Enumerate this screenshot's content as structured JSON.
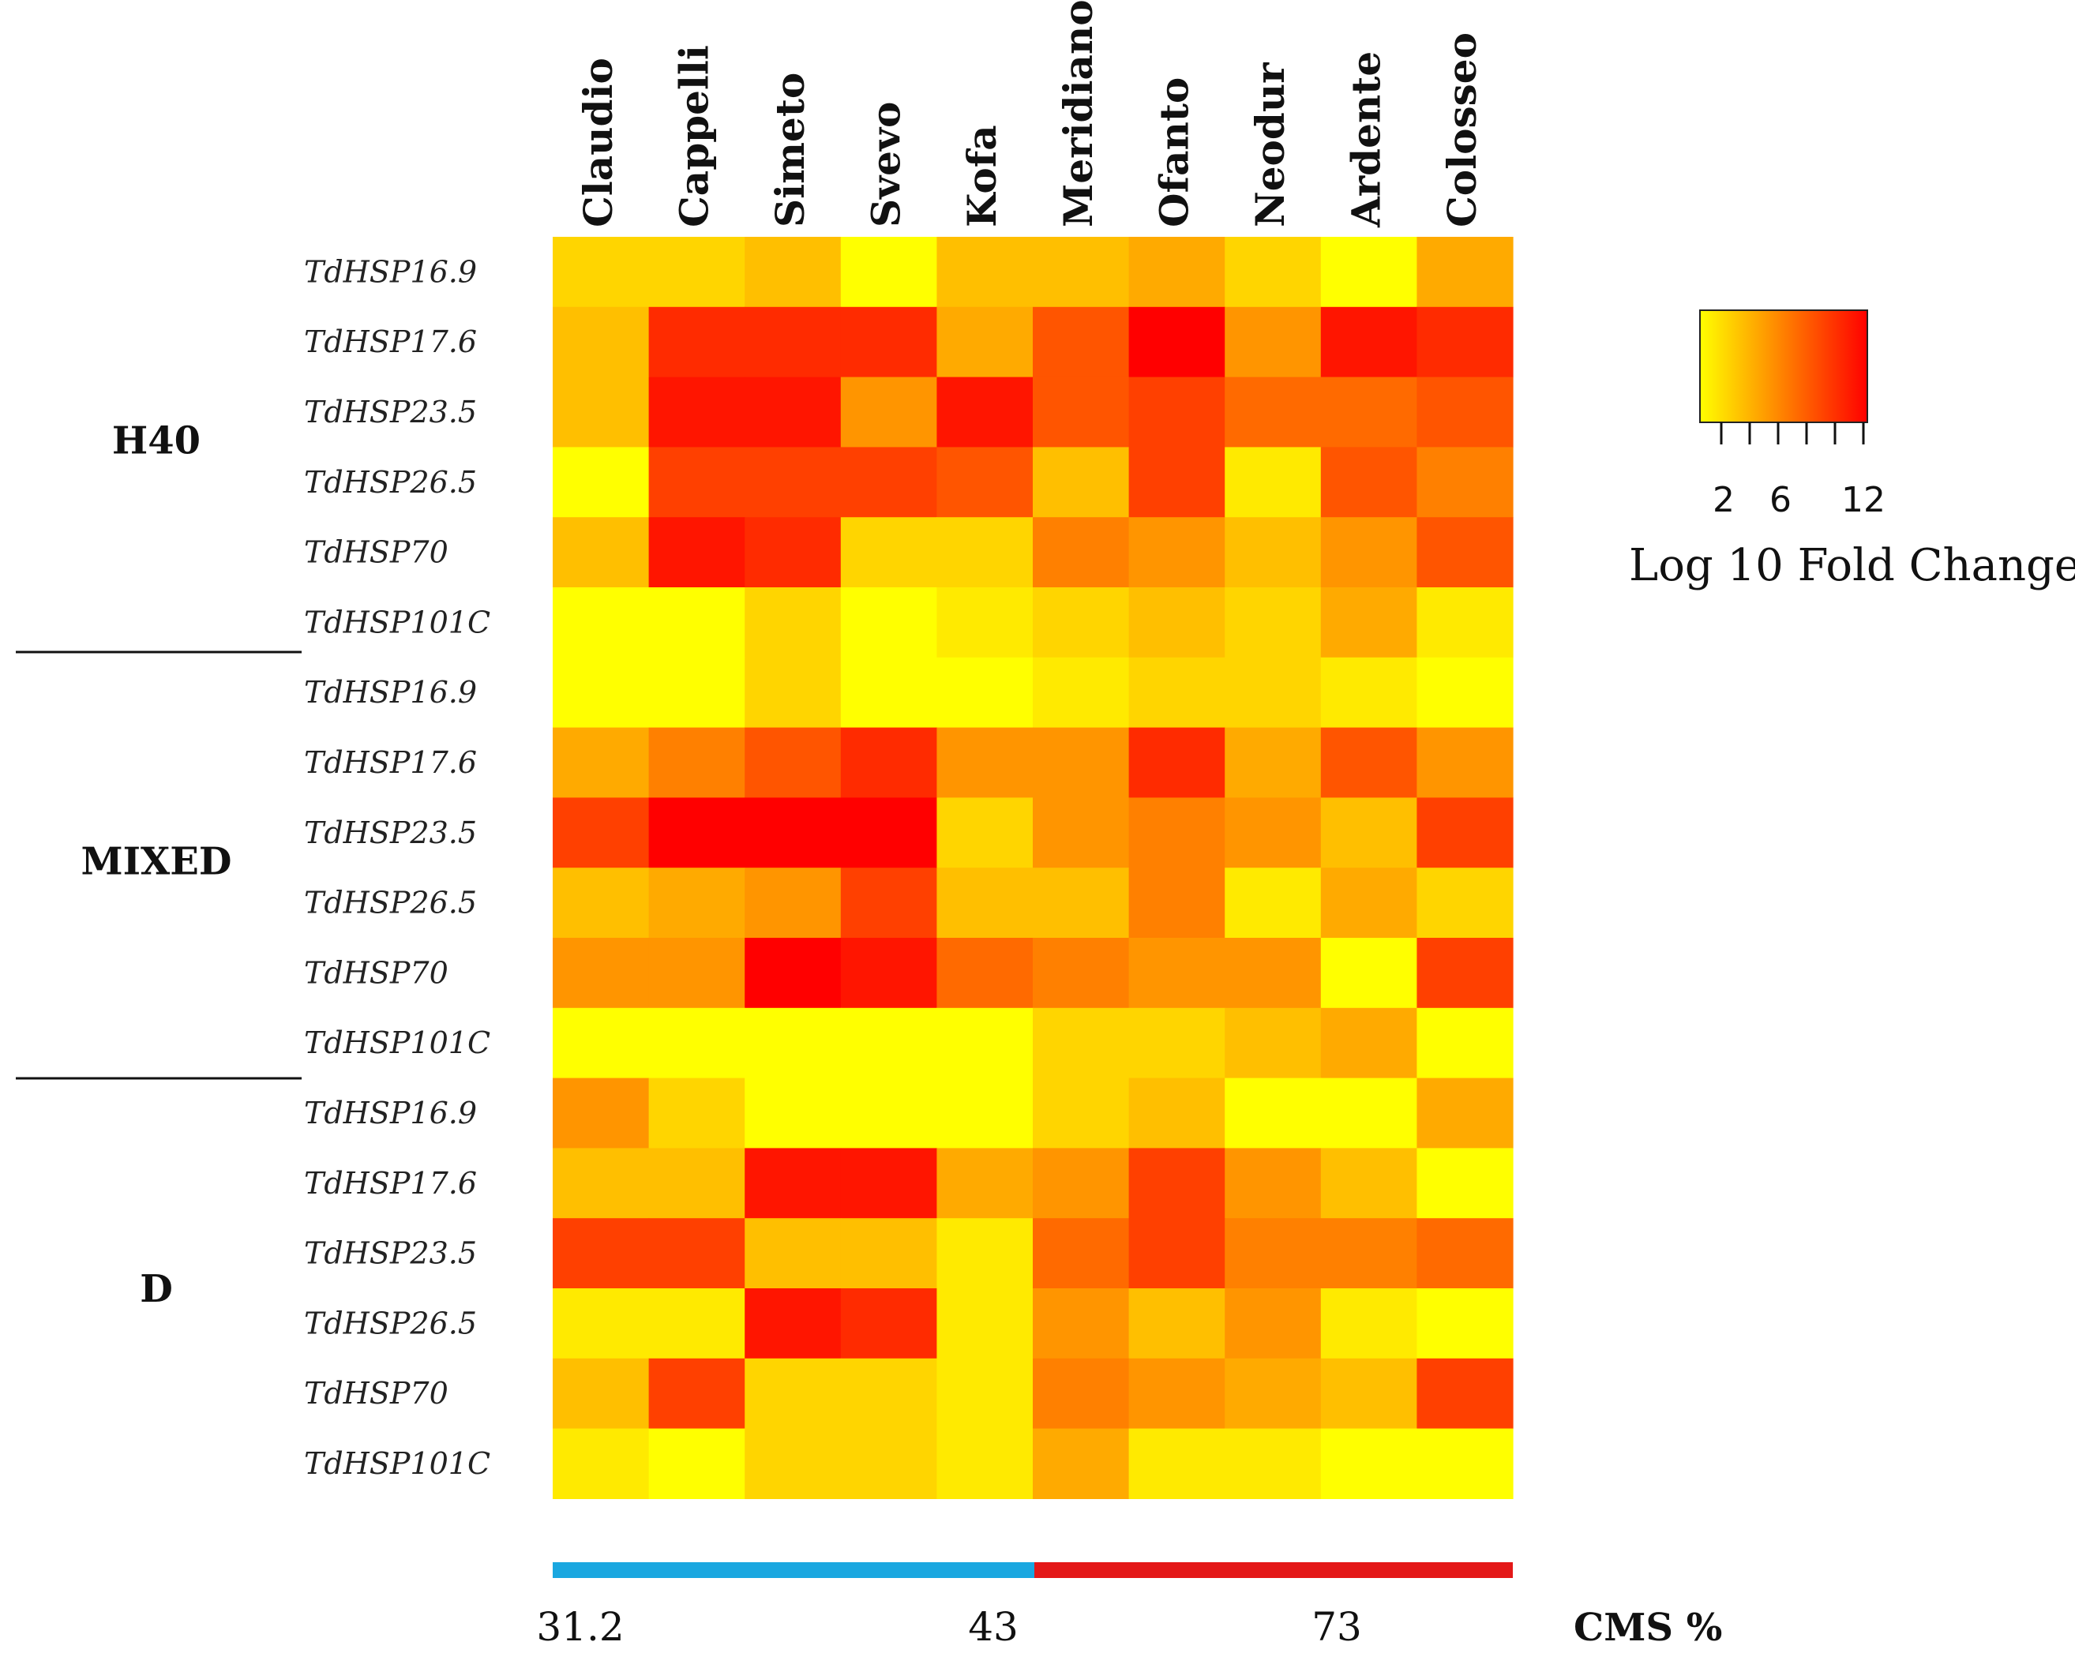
{
  "chart_data": {
    "type": "heatmap",
    "columns": [
      "Claudio",
      "Cappelli",
      "Simeto",
      "Svevo",
      "Kofa",
      "Meridiano",
      "Ofanto",
      "Neodur",
      "Ardente",
      "Colosseo"
    ],
    "groups": [
      {
        "name": "H40",
        "rows": [
          "TdHSP16.9",
          "TdHSP17.6",
          "TdHSP23.5",
          "TdHSP26.5",
          "TdHSP70",
          "TdHSP101C"
        ]
      },
      {
        "name": "MIXED",
        "rows": [
          "TdHSP16.9",
          "TdHSP17.6",
          "TdHSP23.5",
          "TdHSP26.5",
          "TdHSP70",
          "TdHSP101C"
        ]
      },
      {
        "name": "D",
        "rows": [
          "TdHSP16.9",
          "TdHSP17.6",
          "TdHSP23.5",
          "TdHSP26.5",
          "TdHSP70",
          "TdHSP101C"
        ]
      }
    ],
    "values": [
      [
        3,
        3,
        4,
        1,
        4,
        4,
        5,
        3,
        1,
        5
      ],
      [
        4,
        11,
        11,
        11,
        5,
        9,
        13,
        6,
        12,
        11
      ],
      [
        4,
        12,
        12,
        6,
        12,
        9,
        10,
        8,
        8,
        9
      ],
      [
        1,
        10,
        10,
        10,
        9,
        4,
        10,
        2,
        9,
        7
      ],
      [
        4,
        12,
        11,
        3,
        3,
        7,
        6,
        4,
        6,
        9
      ],
      [
        1,
        1,
        3,
        1,
        2,
        3,
        4,
        3,
        5,
        2
      ],
      [
        1,
        1,
        3,
        1,
        1,
        2,
        3,
        3,
        2,
        1
      ],
      [
        5,
        7,
        9,
        11,
        6,
        6,
        11,
        5,
        9,
        6
      ],
      [
        10,
        13,
        13,
        13,
        3,
        6,
        7,
        6,
        4,
        10
      ],
      [
        4,
        5,
        6,
        10,
        4,
        4,
        7,
        2,
        5,
        3
      ],
      [
        6,
        6,
        13,
        12,
        8,
        7,
        6,
        6,
        1,
        10
      ],
      [
        1,
        1,
        1,
        1,
        1,
        3,
        3,
        4,
        5,
        1
      ],
      [
        6,
        3,
        1,
        1,
        1,
        3,
        4,
        1,
        1,
        5
      ],
      [
        4,
        4,
        12,
        12,
        5,
        6,
        10,
        6,
        4,
        1
      ],
      [
        10,
        10,
        4,
        4,
        2,
        8,
        10,
        7,
        7,
        8
      ],
      [
        2,
        2,
        12,
        11,
        2,
        6,
        4,
        6,
        2,
        1
      ],
      [
        4,
        10,
        3,
        3,
        2,
        7,
        6,
        5,
        4,
        10
      ],
      [
        2,
        1,
        3,
        3,
        2,
        5,
        2,
        2,
        1,
        1
      ]
    ],
    "color_scale": [
      "#ffff00",
      "#ff0000"
    ],
    "value_range": [
      1,
      13
    ],
    "legend": {
      "title": "Log 10 Fold Change",
      "ticks": [
        "2",
        "6",
        "12"
      ],
      "tick_values": [
        2,
        6,
        12
      ]
    },
    "cms_bar": {
      "title": "CMS %",
      "labels": [
        "31.2",
        "43",
        "73"
      ],
      "segments": [
        {
          "color": "#1aa7e0"
        },
        {
          "color": "#e41818"
        }
      ]
    }
  }
}
